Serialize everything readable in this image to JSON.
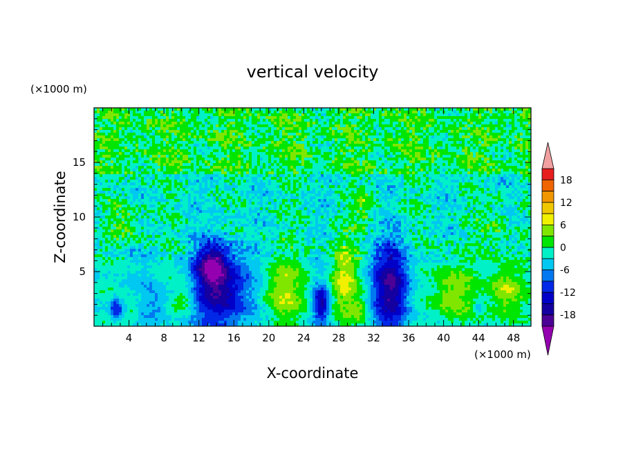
{
  "chart_data": {
    "type": "heatmap",
    "title": "vertical velocity",
    "xlabel": "X-coordinate",
    "ylabel": "Z-coordinate",
    "x_unit": "(×1000 m)",
    "y_unit": "(×1000 m)",
    "xlim": [
      0,
      50
    ],
    "ylim": [
      0,
      20
    ],
    "x_ticks": [
      4,
      8,
      12,
      16,
      20,
      24,
      28,
      32,
      36,
      40,
      44,
      48
    ],
    "y_ticks": [
      5,
      10,
      15
    ],
    "colorbar": {
      "levels": [
        -21,
        -18,
        -15,
        -12,
        -9,
        -6,
        -3,
        0,
        3,
        6,
        9,
        12,
        15,
        18,
        21
      ],
      "tick_labels": [
        "18",
        "12",
        "6",
        "0",
        "-6",
        "-12",
        "-18"
      ],
      "tick_values": [
        18,
        12,
        6,
        0,
        -6,
        -12,
        -18
      ],
      "colors": [
        "#9400b0",
        "#4b0096",
        "#1400a0",
        "#0000c8",
        "#0028e6",
        "#0078f0",
        "#00c8f0",
        "#00f0c8",
        "#00e600",
        "#80e600",
        "#f0f000",
        "#f0c800",
        "#f09600",
        "#f06400",
        "#e61e1e",
        "#f0a0a0"
      ],
      "extend": "both"
    },
    "features": [
      {
        "x": 2.5,
        "z": 1.6,
        "w": 0.8,
        "h": 1.0,
        "value": -9
      },
      {
        "x": 4.4,
        "z": 1.2,
        "w": 0.8,
        "h": 0.8,
        "value": 4
      },
      {
        "x": 7.2,
        "z": 2.2,
        "w": 1.5,
        "h": 1.8,
        "value": -4
      },
      {
        "x": 10.3,
        "z": 2.5,
        "w": 1.3,
        "h": 1.5,
        "value": 5
      },
      {
        "x": 14.5,
        "z": 3.4,
        "w": 3.0,
        "h": 3.8,
        "value": -15
      },
      {
        "x": 13.4,
        "z": 5.6,
        "w": 1.6,
        "h": 1.8,
        "value": -11
      },
      {
        "x": 21.6,
        "z": 3.2,
        "w": 2.4,
        "h": 3.0,
        "value": 8
      },
      {
        "x": 26.0,
        "z": 2.1,
        "w": 0.9,
        "h": 1.6,
        "value": -13
      },
      {
        "x": 28.6,
        "z": 4.2,
        "w": 1.6,
        "h": 3.6,
        "value": 9
      },
      {
        "x": 30.5,
        "z": 1.5,
        "w": 0.9,
        "h": 1.1,
        "value": 5
      },
      {
        "x": 34.0,
        "z": 3.6,
        "w": 2.0,
        "h": 4.2,
        "value": -15
      },
      {
        "x": 41.0,
        "z": 3.0,
        "w": 2.4,
        "h": 3.0,
        "value": 8
      },
      {
        "x": 44.0,
        "z": 1.6,
        "w": 0.5,
        "h": 0.5,
        "value": -6
      },
      {
        "x": 47.3,
        "z": 3.2,
        "w": 1.9,
        "h": 2.8,
        "value": 9
      },
      {
        "x": 3.6,
        "z": 9.6,
        "w": 1.8,
        "h": 1.8,
        "value": 4
      },
      {
        "x": 31.0,
        "z": 11.0,
        "w": 1.6,
        "h": 1.8,
        "value": 4
      },
      {
        "x": 46.0,
        "z": 9.0,
        "w": 1.6,
        "h": 1.8,
        "value": 3
      }
    ]
  }
}
